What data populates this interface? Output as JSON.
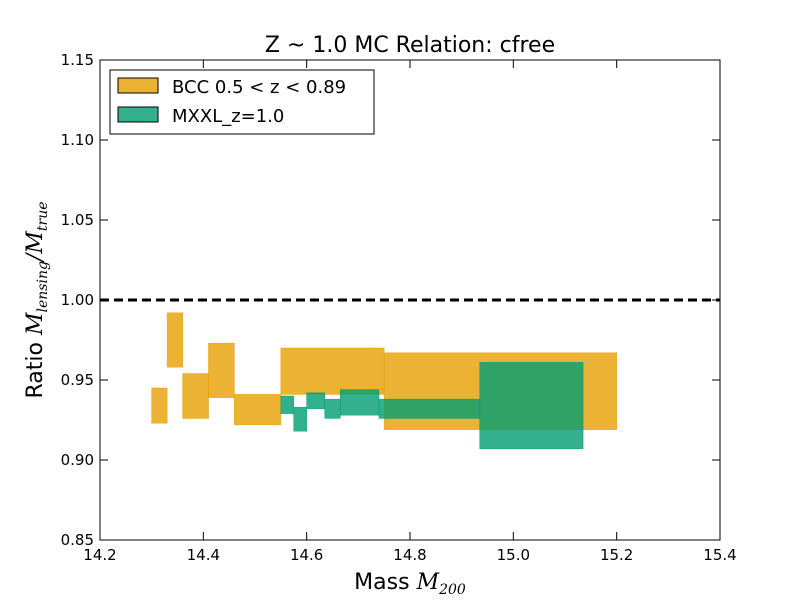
{
  "chart_data": {
    "type": "area",
    "title": "Z ~ 1.0 MC Relation: cfree",
    "xlabel_prefix": "Mass ",
    "xlabel_math": "M",
    "xlabel_sub": "200",
    "ylabel_prefix": "Ratio ",
    "ylabel_math_num": "M",
    "ylabel_sub_num": "lensing",
    "ylabel_slash": "/",
    "ylabel_math_den": "M",
    "ylabel_sub_den": "true",
    "xlim": [
      14.2,
      15.4
    ],
    "ylim": [
      0.85,
      1.15
    ],
    "xticks": [
      14.2,
      14.4,
      14.6,
      14.8,
      15.0,
      15.2,
      15.4
    ],
    "xtick_labels": [
      "14.2",
      "14.4",
      "14.6",
      "14.8",
      "15.0",
      "15.2",
      "15.4"
    ],
    "yticks": [
      0.85,
      0.9,
      0.95,
      1.0,
      1.05,
      1.1,
      1.15
    ],
    "ytick_labels": [
      "0.85",
      "0.90",
      "0.95",
      "1.00",
      "1.05",
      "1.10",
      "1.15"
    ],
    "reference_line": {
      "y": 1.0,
      "style": "dashed",
      "color": "#000000"
    },
    "legend_position": "upper-left",
    "series": [
      {
        "name": "BCC 0.5 < z < 0.89",
        "color": "#e69f00",
        "opacity": 0.8,
        "bands": [
          {
            "x0": 14.3,
            "x1": 14.33,
            "lo": 0.923,
            "hi": 0.945
          },
          {
            "x0": 14.33,
            "x1": 14.36,
            "lo": 0.958,
            "hi": 0.992
          },
          {
            "x0": 14.36,
            "x1": 14.41,
            "lo": 0.926,
            "hi": 0.954
          },
          {
            "x0": 14.41,
            "x1": 14.46,
            "lo": 0.939,
            "hi": 0.973
          },
          {
            "x0": 14.46,
            "x1": 14.55,
            "lo": 0.922,
            "hi": 0.941
          },
          {
            "x0": 14.55,
            "x1": 14.75,
            "lo": 0.941,
            "hi": 0.97
          },
          {
            "x0": 14.75,
            "x1": 15.2,
            "lo": 0.919,
            "hi": 0.967
          }
        ]
      },
      {
        "name": "MXXL_z=1.0",
        "color": "#009e73",
        "opacity": 0.8,
        "bands": [
          {
            "x0": 14.55,
            "x1": 14.575,
            "lo": 0.929,
            "hi": 0.94
          },
          {
            "x0": 14.575,
            "x1": 14.6,
            "lo": 0.918,
            "hi": 0.933
          },
          {
            "x0": 14.6,
            "x1": 14.635,
            "lo": 0.932,
            "hi": 0.942
          },
          {
            "x0": 14.635,
            "x1": 14.665,
            "lo": 0.926,
            "hi": 0.938
          },
          {
            "x0": 14.665,
            "x1": 14.74,
            "lo": 0.928,
            "hi": 0.944
          },
          {
            "x0": 14.74,
            "x1": 14.935,
            "lo": 0.926,
            "hi": 0.938
          },
          {
            "x0": 14.935,
            "x1": 15.135,
            "lo": 0.907,
            "hi": 0.961
          }
        ]
      }
    ]
  }
}
